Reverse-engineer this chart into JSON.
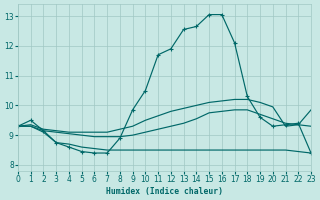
{
  "xlabel": "Humidex (Indice chaleur)",
  "xlim": [
    0,
    23
  ],
  "ylim": [
    7.8,
    13.4
  ],
  "yticks": [
    8,
    9,
    10,
    11,
    12,
    13
  ],
  "xticks": [
    0,
    1,
    2,
    3,
    4,
    5,
    6,
    7,
    8,
    9,
    10,
    11,
    12,
    13,
    14,
    15,
    16,
    17,
    18,
    19,
    20,
    21,
    22,
    23
  ],
  "bg_color": "#c8e8e4",
  "grid_color": "#a0c8c4",
  "line_color": "#006868",
  "curve_peak": {
    "x": [
      0,
      1,
      2,
      3,
      4,
      5,
      6,
      7,
      8,
      9,
      10,
      11,
      12,
      13,
      14,
      15,
      16,
      17,
      18,
      19,
      20,
      21,
      22,
      23
    ],
    "y": [
      9.3,
      9.5,
      9.15,
      8.75,
      8.6,
      8.45,
      8.4,
      8.4,
      8.9,
      9.85,
      10.5,
      11.7,
      11.9,
      12.55,
      12.65,
      13.05,
      13.05,
      12.1,
      10.3,
      9.6,
      9.3,
      9.35,
      9.4,
      8.4
    ]
  },
  "curve_upper": {
    "x": [
      0,
      1,
      2,
      3,
      4,
      5,
      6,
      7,
      8,
      9,
      10,
      11,
      12,
      13,
      14,
      15,
      16,
      17,
      18,
      19,
      20,
      21,
      22,
      23
    ],
    "y": [
      9.3,
      9.35,
      9.2,
      9.15,
      9.1,
      9.1,
      9.1,
      9.1,
      9.2,
      9.3,
      9.5,
      9.65,
      9.8,
      9.9,
      10.0,
      10.1,
      10.15,
      10.2,
      10.2,
      10.1,
      9.95,
      9.3,
      9.35,
      9.85
    ]
  },
  "curve_mid": {
    "x": [
      0,
      1,
      2,
      3,
      4,
      5,
      6,
      7,
      8,
      9,
      10,
      11,
      12,
      13,
      14,
      15,
      16,
      17,
      18,
      19,
      20,
      21,
      22,
      23
    ],
    "y": [
      9.3,
      9.3,
      9.15,
      9.1,
      9.05,
      9.0,
      8.95,
      8.95,
      8.95,
      9.0,
      9.1,
      9.2,
      9.3,
      9.4,
      9.55,
      9.75,
      9.8,
      9.85,
      9.85,
      9.7,
      9.55,
      9.4,
      9.35,
      9.3
    ]
  },
  "curve_low": {
    "x": [
      0,
      1,
      2,
      3,
      4,
      5,
      6,
      7,
      8,
      9,
      10,
      11,
      12,
      13,
      14,
      15,
      16,
      17,
      18,
      19,
      20,
      21,
      22,
      23
    ],
    "y": [
      9.3,
      9.3,
      9.1,
      8.75,
      8.7,
      8.6,
      8.55,
      8.5,
      8.5,
      8.5,
      8.5,
      8.5,
      8.5,
      8.5,
      8.5,
      8.5,
      8.5,
      8.5,
      8.5,
      8.5,
      8.5,
      8.5,
      8.45,
      8.4
    ]
  }
}
